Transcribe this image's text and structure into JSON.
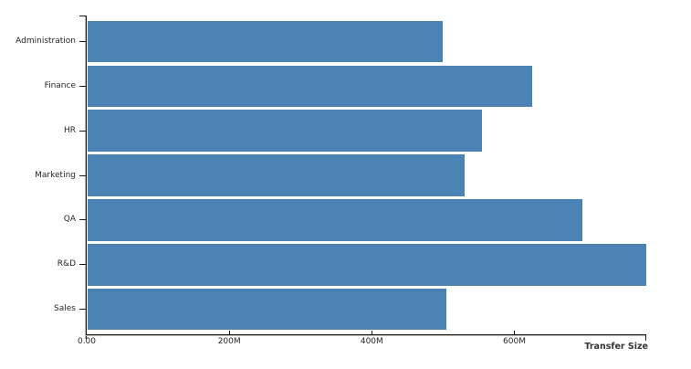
{
  "chart_data": {
    "type": "bar",
    "orientation": "horizontal",
    "title": "",
    "categories": [
      "Administration",
      "Finance",
      "HR",
      "Marketing",
      "QA",
      "R&D",
      "Sales"
    ],
    "values": [
      500,
      625,
      555,
      530,
      695,
      785,
      505
    ],
    "value_unit": "M",
    "xlabel": "Transfer Size",
    "ylabel": "",
    "xlim": [
      0,
      785
    ],
    "x_ticks": [
      {
        "value": 0,
        "label": "0.00"
      },
      {
        "value": 200,
        "label": "200M"
      },
      {
        "value": 400,
        "label": "400M"
      },
      {
        "value": 600,
        "label": "600M"
      }
    ],
    "grid": false,
    "legend_visible": false,
    "colors": {
      "bar": "#4B83B5",
      "axis": "#1A1A1A",
      "axis_shadow": "#B8B8B8",
      "tick_label": "#262626",
      "category_label": "#262626",
      "axis_title": "#333333",
      "background": "#FFFFFF"
    }
  }
}
